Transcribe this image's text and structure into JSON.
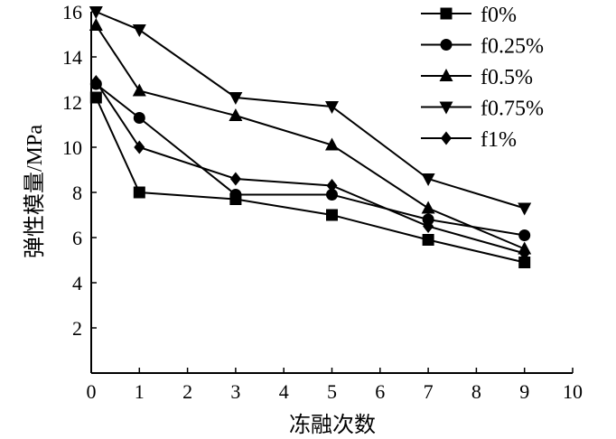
{
  "chart_data": {
    "type": "line",
    "xlabel": "冻融次数",
    "ylabel": "弹性模量/MPa",
    "xlim": [
      0,
      10
    ],
    "ylim": [
      0,
      16
    ],
    "x_ticks": [
      0,
      1,
      2,
      3,
      4,
      5,
      6,
      7,
      8,
      9,
      10
    ],
    "y_ticks": [
      2,
      4,
      6,
      8,
      10,
      12,
      14,
      16
    ],
    "x": [
      0.1,
      1,
      3,
      5,
      7,
      9
    ],
    "grid": false,
    "legend_position": "top-right",
    "series": [
      {
        "name": "f0%",
        "marker": "square",
        "values": [
          12.2,
          8.0,
          7.7,
          7.0,
          5.9,
          4.9
        ]
      },
      {
        "name": "f0.25%",
        "marker": "circle",
        "values": [
          12.8,
          11.3,
          7.9,
          7.9,
          6.8,
          6.1
        ]
      },
      {
        "name": "f0.5%",
        "marker": "triangle-up",
        "values": [
          15.4,
          12.5,
          11.4,
          10.1,
          7.3,
          5.5
        ]
      },
      {
        "name": "f0.75%",
        "marker": "triangle-down",
        "values": [
          16.0,
          15.2,
          12.2,
          11.8,
          8.6,
          7.3
        ]
      },
      {
        "name": "f1%",
        "marker": "diamond",
        "values": [
          12.9,
          10.0,
          8.6,
          8.3,
          6.5,
          5.3
        ]
      }
    ]
  }
}
